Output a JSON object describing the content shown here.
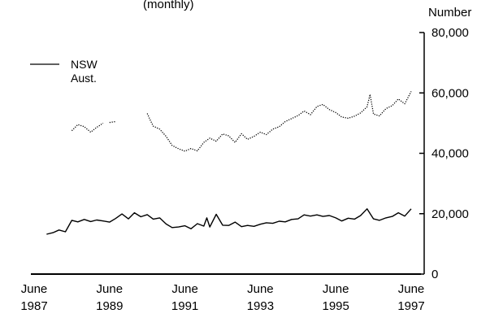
{
  "chart_data": {
    "type": "line",
    "title_fragment": "(monthly)",
    "ylabel": "Number",
    "ylim": [
      0,
      80000
    ],
    "y_ticks": [
      {
        "value": 0,
        "label": "0"
      },
      {
        "value": 20000,
        "label": "20,000"
      },
      {
        "value": 40000,
        "label": "40,000"
      },
      {
        "value": 60000,
        "label": "60,000"
      },
      {
        "value": 80000,
        "label": "80,000"
      }
    ],
    "xlim": [
      1987.42,
      1997.42
    ],
    "x_ticks": [
      {
        "value": 1987.42,
        "line1": "June",
        "line2": "1987"
      },
      {
        "value": 1989.42,
        "line1": "June",
        "line2": "1989"
      },
      {
        "value": 1991.42,
        "line1": "June",
        "line2": "1991"
      },
      {
        "value": 1993.42,
        "line1": "June",
        "line2": "1993"
      },
      {
        "value": 1995.42,
        "line1": "June",
        "line2": "1995"
      },
      {
        "value": 1997.42,
        "line1": "June",
        "line2": "1997"
      }
    ],
    "legend": {
      "placement": "top-left"
    },
    "series": [
      {
        "name": "NSW",
        "style": "solid",
        "color": "#000000",
        "points": [
          [
            1987.75,
            13200
          ],
          [
            1987.92,
            13700
          ],
          [
            1988.08,
            14600
          ],
          [
            1988.25,
            14000
          ],
          [
            1988.42,
            17800
          ],
          [
            1988.58,
            17300
          ],
          [
            1988.75,
            18100
          ],
          [
            1988.92,
            17400
          ],
          [
            1989.08,
            17900
          ],
          [
            1989.25,
            17600
          ],
          [
            1989.42,
            17200
          ],
          [
            1989.58,
            18400
          ],
          [
            1989.75,
            19900
          ],
          [
            1989.92,
            18300
          ],
          [
            1990.08,
            20300
          ],
          [
            1990.25,
            19000
          ],
          [
            1990.42,
            19700
          ],
          [
            1990.58,
            18200
          ],
          [
            1990.75,
            18600
          ],
          [
            1990.92,
            16600
          ],
          [
            1991.08,
            15400
          ],
          [
            1991.25,
            15600
          ],
          [
            1991.42,
            16000
          ],
          [
            1991.58,
            15000
          ],
          [
            1991.75,
            16700
          ],
          [
            1991.92,
            15900
          ],
          [
            1992.0,
            18600
          ],
          [
            1992.08,
            15600
          ],
          [
            1992.25,
            19800
          ],
          [
            1992.42,
            16200
          ],
          [
            1992.58,
            16100
          ],
          [
            1992.75,
            17200
          ],
          [
            1992.92,
            15700
          ],
          [
            1993.08,
            16100
          ],
          [
            1993.25,
            15800
          ],
          [
            1993.42,
            16500
          ],
          [
            1993.58,
            17000
          ],
          [
            1993.75,
            16800
          ],
          [
            1993.92,
            17500
          ],
          [
            1994.08,
            17300
          ],
          [
            1994.25,
            18100
          ],
          [
            1994.42,
            18300
          ],
          [
            1994.58,
            19600
          ],
          [
            1994.75,
            19200
          ],
          [
            1994.92,
            19600
          ],
          [
            1995.08,
            19100
          ],
          [
            1995.25,
            19400
          ],
          [
            1995.42,
            18600
          ],
          [
            1995.58,
            17600
          ],
          [
            1995.75,
            18500
          ],
          [
            1995.92,
            18200
          ],
          [
            1996.08,
            19400
          ],
          [
            1996.25,
            21600
          ],
          [
            1996.42,
            18300
          ],
          [
            1996.58,
            17800
          ],
          [
            1996.75,
            18600
          ],
          [
            1996.92,
            19100
          ],
          [
            1997.08,
            20300
          ],
          [
            1997.25,
            19200
          ],
          [
            1997.42,
            21600
          ]
        ]
      },
      {
        "name": "Aust.",
        "style": "dotted",
        "color": "#000000",
        "segments": [
          [
            [
              1988.42,
              47500
            ],
            [
              1988.58,
              49500
            ],
            [
              1988.75,
              48800
            ],
            [
              1988.92,
              47000
            ],
            [
              1989.08,
              48600
            ],
            [
              1989.25,
              50000
            ]
          ],
          [
            [
              1989.42,
              50200
            ],
            [
              1989.58,
              50500
            ]
          ],
          [
            [
              1990.42,
              53200
            ],
            [
              1990.5,
              51000
            ],
            [
              1990.58,
              49000
            ],
            [
              1990.75,
              48000
            ],
            [
              1990.92,
              45600
            ],
            [
              1991.08,
              42600
            ],
            [
              1991.25,
              41500
            ],
            [
              1991.42,
              40700
            ],
            [
              1991.58,
              41600
            ],
            [
              1991.75,
              40800
            ],
            [
              1991.92,
              43600
            ],
            [
              1992.08,
              45000
            ],
            [
              1992.25,
              44000
            ],
            [
              1992.42,
              46400
            ],
            [
              1992.58,
              45800
            ],
            [
              1992.75,
              43600
            ],
            [
              1992.92,
              46500
            ],
            [
              1993.08,
              44600
            ],
            [
              1993.25,
              45600
            ],
            [
              1993.42,
              47000
            ],
            [
              1993.58,
              46200
            ],
            [
              1993.75,
              48000
            ],
            [
              1993.92,
              48800
            ],
            [
              1994.08,
              50500
            ],
            [
              1994.25,
              51500
            ],
            [
              1994.42,
              52500
            ],
            [
              1994.58,
              54000
            ],
            [
              1994.75,
              52800
            ],
            [
              1994.92,
              55500
            ],
            [
              1995.08,
              56200
            ],
            [
              1995.25,
              54500
            ],
            [
              1995.42,
              53500
            ],
            [
              1995.58,
              52000
            ],
            [
              1995.75,
              51600
            ],
            [
              1995.92,
              52300
            ],
            [
              1996.08,
              53400
            ],
            [
              1996.25,
              55400
            ],
            [
              1996.33,
              59500
            ],
            [
              1996.42,
              53000
            ],
            [
              1996.58,
              52400
            ],
            [
              1996.75,
              54800
            ],
            [
              1996.92,
              55800
            ],
            [
              1997.08,
              58000
            ],
            [
              1997.25,
              56400
            ],
            [
              1997.42,
              60500
            ]
          ]
        ]
      }
    ]
  }
}
